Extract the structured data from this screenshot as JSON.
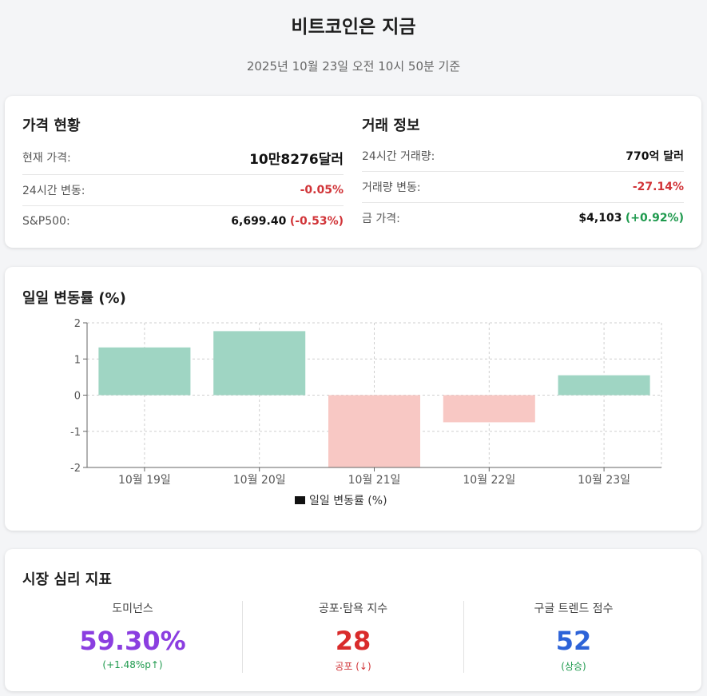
{
  "header": {
    "title": "비트코인은 지금",
    "subtitle": "2025년 10월 23일 오전 10시 50분 기준"
  },
  "price": {
    "title": "가격 현황",
    "current_label": "현재 가격:",
    "current_value": "10만8276달러",
    "change_label": "24시간 변동:",
    "change_value": "-0.05%",
    "sp_label": "S&P500:",
    "sp_value": "6,699.40",
    "sp_change": "(-0.53%)"
  },
  "trade": {
    "title": "거래 정보",
    "volume_label": "24시간 거래량:",
    "volume_value": "770억 달러",
    "volume_change_label": "거래량 변동:",
    "volume_change_value": "-27.14%",
    "gold_label": "금 가격:",
    "gold_value": "$4,103",
    "gold_change": "(+0.92%)"
  },
  "chart_section": {
    "title": "일일 변동률 (%)"
  },
  "chart_data": {
    "type": "bar",
    "categories": [
      "10월 19일",
      "10월 20일",
      "10월 21일",
      "10월 22일",
      "10월 23일"
    ],
    "series": [
      {
        "name": "일일 변동률 (%)",
        "values": [
          1.32,
          1.77,
          -2.0,
          -0.75,
          0.55
        ]
      }
    ],
    "ylim": [
      -2,
      2
    ],
    "yticks": [
      "2",
      "1",
      "0",
      "-1",
      "-2"
    ],
    "grid": true,
    "legend": "bottom",
    "colors": {
      "positive": "#9fd5c3",
      "negative": "#f8c8c4",
      "legend_swatch": "#111111"
    }
  },
  "sentiment": {
    "title": "시장 심리 지표",
    "dominance": {
      "label": "도미넌스",
      "value": "59.30%",
      "sub": "(+1.48%p↑)",
      "color": "#8b3ee0"
    },
    "fear_greed": {
      "label": "공포·탐욕 지수",
      "value": "28",
      "sub": "공포 (↓)",
      "color": "#d92b2b"
    },
    "google": {
      "label": "구글 트렌드 점수",
      "value": "52",
      "sub": "(상승)",
      "color": "#2d63d8"
    }
  }
}
